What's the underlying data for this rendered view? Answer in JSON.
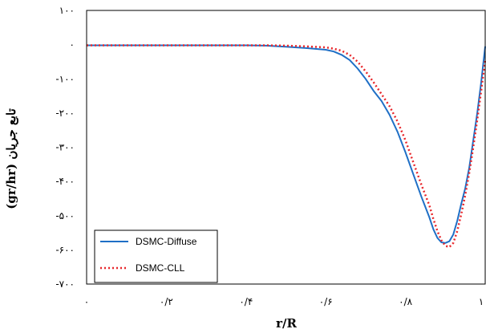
{
  "chart_data": {
    "type": "line",
    "xlabel": "r/R",
    "ylabel": "(gr/hr) تابع جریان",
    "xlim": [
      0,
      1
    ],
    "ylim": [
      -700,
      100
    ],
    "x_ticks": [
      {
        "value": 0,
        "label": "۰"
      },
      {
        "value": 0.2,
        "label": "۰/۲"
      },
      {
        "value": 0.4,
        "label": "۰/۴"
      },
      {
        "value": 0.6,
        "label": "۰/۶"
      },
      {
        "value": 0.8,
        "label": "۰/۸"
      },
      {
        "value": 1,
        "label": "۱"
      }
    ],
    "y_ticks": [
      {
        "value": 100,
        "label": "۱۰۰"
      },
      {
        "value": 0,
        "label": "۰"
      },
      {
        "value": -100,
        "label": "-۱۰۰"
      },
      {
        "value": -200,
        "label": "-۲۰۰"
      },
      {
        "value": -300,
        "label": "-۳۰۰"
      },
      {
        "value": -400,
        "label": "-۴۰۰"
      },
      {
        "value": -500,
        "label": "-۵۰۰"
      },
      {
        "value": -600,
        "label": "-۶۰۰"
      },
      {
        "value": -700,
        "label": "-۷۰۰"
      }
    ],
    "grid": false,
    "legend_position": "bottom-left",
    "series": [
      {
        "name": "DSMC-Diffuse",
        "color": "#1f6fc6",
        "style": "solid",
        "x": [
          0,
          0.1,
          0.2,
          0.3,
          0.4,
          0.45,
          0.5,
          0.55,
          0.6,
          0.62,
          0.64,
          0.66,
          0.68,
          0.7,
          0.72,
          0.74,
          0.76,
          0.78,
          0.8,
          0.82,
          0.84,
          0.86,
          0.87,
          0.88,
          0.89,
          0.9,
          0.91,
          0.92,
          0.93,
          0.94,
          0.95,
          0.96,
          0.97,
          0.98,
          0.99,
          1.0
        ],
        "y": [
          -2,
          -2,
          -2,
          -2,
          -2,
          -3,
          -6,
          -10,
          -15,
          -20,
          -30,
          -45,
          -70,
          -100,
          -135,
          -165,
          -205,
          -255,
          -315,
          -380,
          -445,
          -505,
          -540,
          -565,
          -578,
          -580,
          -575,
          -555,
          -515,
          -465,
          -420,
          -360,
          -280,
          -200,
          -110,
          -5
        ]
      },
      {
        "name": "DSMC-CLL",
        "color": "#e8262a",
        "style": "dotted",
        "x": [
          0,
          0.1,
          0.2,
          0.3,
          0.4,
          0.45,
          0.5,
          0.55,
          0.6,
          0.62,
          0.64,
          0.66,
          0.68,
          0.7,
          0.72,
          0.74,
          0.76,
          0.78,
          0.8,
          0.82,
          0.84,
          0.86,
          0.87,
          0.88,
          0.89,
          0.9,
          0.91,
          0.92,
          0.93,
          0.94,
          0.95,
          0.96,
          0.97,
          0.98,
          0.99,
          1.0
        ],
        "y": [
          -2,
          -2,
          -2,
          -2,
          -2,
          -2,
          -3,
          -5,
          -8,
          -12,
          -18,
          -30,
          -50,
          -78,
          -110,
          -145,
          -180,
          -225,
          -280,
          -345,
          -410,
          -470,
          -510,
          -545,
          -572,
          -588,
          -592,
          -580,
          -545,
          -495,
          -440,
          -375,
          -300,
          -220,
          -135,
          -45
        ]
      }
    ]
  }
}
